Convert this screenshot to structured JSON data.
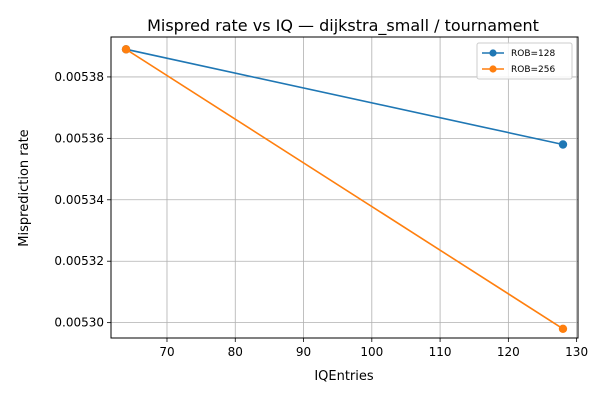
{
  "chart_data": {
    "type": "line",
    "title": "Mispred rate vs IQ — dijkstra_small / tournament",
    "xlabel": "IQEntries",
    "ylabel": "Misprediction rate",
    "xlim": [
      61.8,
      130.2
    ],
    "ylim": [
      0.005295,
      0.005393
    ],
    "xticks": [
      70,
      80,
      90,
      100,
      110,
      120,
      130
    ],
    "yticks": [
      0.0053,
      0.00532,
      0.00534,
      0.00536,
      0.00538
    ],
    "ytick_labels": [
      "0.00530",
      "0.00532",
      "0.00534",
      "0.00536",
      "0.00538"
    ],
    "grid": true,
    "legend_position": "top-right",
    "series": [
      {
        "name": "ROB=128",
        "color": "#1f77b4",
        "x": [
          64,
          128
        ],
        "y": [
          0.005389,
          0.005358
        ]
      },
      {
        "name": "ROB=256",
        "color": "#ff7f0e",
        "x": [
          64,
          128
        ],
        "y": [
          0.005389,
          0.005298
        ]
      }
    ]
  }
}
